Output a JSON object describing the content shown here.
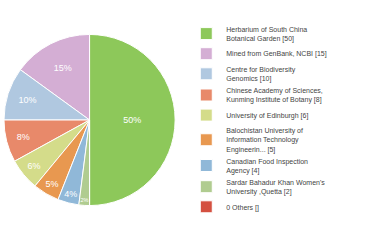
{
  "chart_data": {
    "type": "pie",
    "categories": [
      "Herbarium of South China\nBotanical Garden [50]",
      "Mined from GenBank, NCBI [15]",
      "Centre for Biodiversity\nGenomics [10]",
      "Chinese Academy of Sciences,\nKunming Institute of Botany [8]",
      "University of Edinburgh [6]",
      "Balochistan University of\nInformation Technology\nEngineerin... [5]",
      "Canadian Food Inspection\nAgency [4]",
      "Sardar Bahadur Khan Women's\nUniversity ,Quetta [2]",
      "0 Others []"
    ],
    "values": [
      50,
      15,
      10,
      8,
      6,
      5,
      4,
      2,
      0
    ],
    "value_labels": [
      "50%",
      "15%",
      "10%",
      "8%",
      "6%",
      "5%",
      "4%",
      "2%",
      null
    ],
    "colors": [
      "#8dc85a",
      "#d4aed4",
      "#b0c8e0",
      "#e8896a",
      "#d4dc8a",
      "#e89850",
      "#90b8d8",
      "#b0cc90",
      "#d45040"
    ],
    "data_labels": true,
    "legend": "right"
  }
}
